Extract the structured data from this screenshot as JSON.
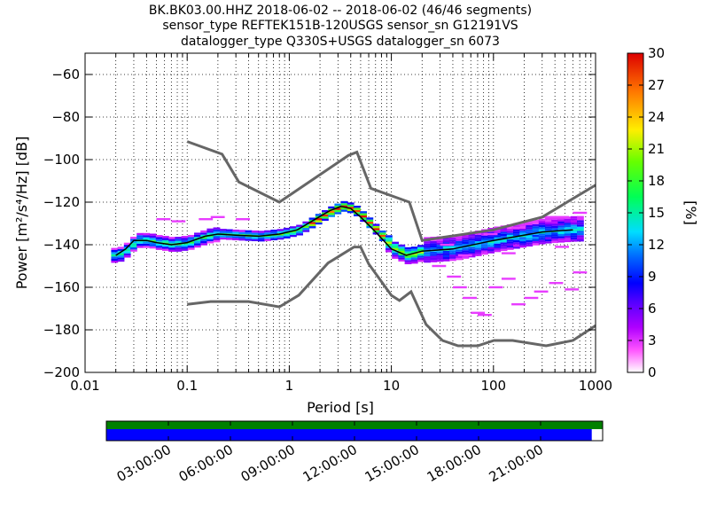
{
  "chart_data": {
    "type": "heatmap",
    "title_lines": [
      "BK.BK03.00.HHZ   2018-06-02 -- 2018-06-02  (46/46 segments)",
      "sensor_type REFTEK151B-120USGS sensor_sn G12191VS",
      "datalogger_type Q330S+USGS datalogger_sn 6073"
    ],
    "xlabel": "Period [s]",
    "ylabel": "Power [m²/s⁴/Hz] [dB]",
    "x_scale": "log",
    "xlim": [
      0.01,
      1000
    ],
    "ylim": [
      -200,
      -50
    ],
    "x_ticks": [
      {
        "value": 0.01,
        "label": "0.01"
      },
      {
        "value": 0.1,
        "label": "0.1"
      },
      {
        "value": 1,
        "label": "1"
      },
      {
        "value": 10,
        "label": "10"
      },
      {
        "value": 100,
        "label": "100"
      },
      {
        "value": 1000,
        "label": "1000"
      }
    ],
    "y_ticks": [
      {
        "value": -200,
        "label": "−200"
      },
      {
        "value": -180,
        "label": "−180"
      },
      {
        "value": -160,
        "label": "−160"
      },
      {
        "value": -140,
        "label": "−140"
      },
      {
        "value": -120,
        "label": "−120"
      },
      {
        "value": -100,
        "label": "−100"
      },
      {
        "value": -80,
        "label": "−80"
      },
      {
        "value": -60,
        "label": "−60"
      }
    ],
    "grid": true,
    "colorbar": {
      "label": "[%]",
      "range": [
        0,
        30
      ],
      "ticks": [
        {
          "value": 0,
          "label": "0"
        },
        {
          "value": 3,
          "label": "3"
        },
        {
          "value": 6,
          "label": "6"
        },
        {
          "value": 9,
          "label": "9"
        },
        {
          "value": 12,
          "label": "12"
        },
        {
          "value": 15,
          "label": "15"
        },
        {
          "value": 18,
          "label": "18"
        },
        {
          "value": 21,
          "label": "21"
        },
        {
          "value": 24,
          "label": "24"
        },
        {
          "value": 27,
          "label": "27"
        },
        {
          "value": 30,
          "label": "30"
        }
      ]
    },
    "noise_model_high": {
      "periods": [
        0.1,
        0.22,
        0.32,
        0.8,
        3.8,
        4.6,
        6.3,
        15,
        20,
        100,
        300,
        1000
      ],
      "db": [
        -91.5,
        -97.4,
        -110.5,
        -120,
        -98,
        -96.5,
        -113.5,
        -120,
        -138,
        -133,
        -127,
        -112
      ]
    },
    "noise_model_low": {
      "periods": [
        0.1,
        0.17,
        0.4,
        0.8,
        1.24,
        2.4,
        4.3,
        5,
        6,
        10,
        12,
        15.6,
        21.9,
        31.6,
        45,
        70,
        101,
        154,
        328,
        600,
        1000
      ],
      "db": [
        -168,
        -166.7,
        -166.7,
        -169.2,
        -163.7,
        -148.6,
        -141.1,
        -141.1,
        -149,
        -163.8,
        -166.2,
        -162.1,
        -177.5,
        -185,
        -187.5,
        -187.5,
        -185,
        -185,
        -187.5,
        -185,
        -178
      ]
    },
    "median_curve": {
      "periods": [
        0.02,
        0.025,
        0.03,
        0.04,
        0.05,
        0.07,
        0.1,
        0.15,
        0.2,
        0.3,
        0.5,
        0.8,
        1.2,
        1.8,
        2.5,
        3.2,
        4,
        5,
        7,
        10,
        14,
        20,
        40,
        100,
        300,
        600
      ],
      "db": [
        -145,
        -142,
        -138,
        -138,
        -139,
        -140,
        -139,
        -136,
        -135,
        -135.5,
        -136,
        -135,
        -133,
        -128,
        -124,
        -122,
        -123,
        -127,
        -134,
        -142,
        -145,
        -143,
        -142,
        -138,
        -134,
        -133
      ]
    },
    "time_axis": {
      "labels": [
        "03:00:00",
        "06:00:00",
        "09:00:00",
        "12:00:00",
        "15:00:00",
        "18:00:00",
        "21:00:00"
      ],
      "data_available_fraction": 1.0,
      "processed_fraction": 0.978
    }
  }
}
